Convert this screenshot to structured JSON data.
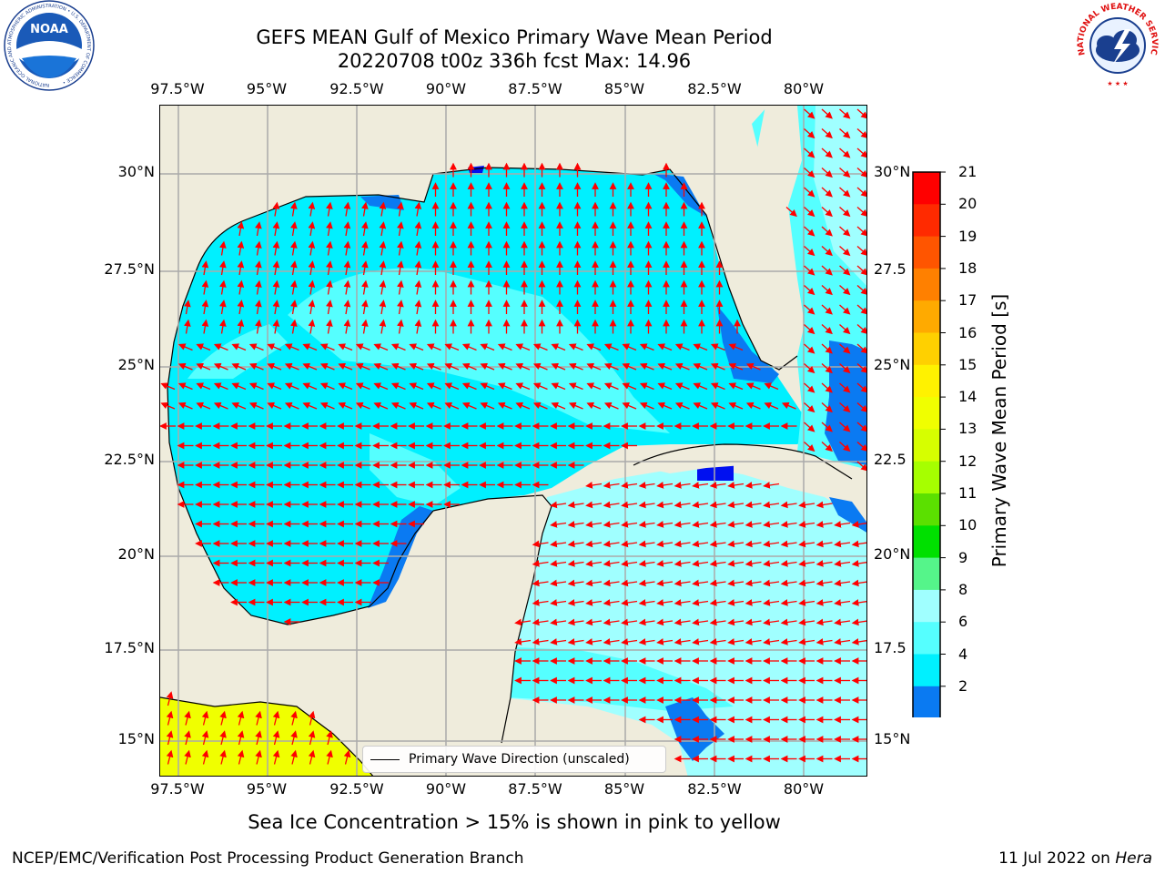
{
  "title": {
    "line1": "GEFS MEAN Gulf of Mexico Primary Wave Mean Period",
    "line2": "20220708 t00z 336h fcst   Max: 14.96"
  },
  "longitude_labels": [
    "97.5°W",
    "95°W",
    "92.5°W",
    "90°W",
    "87.5°W",
    "85°W",
    "82.5°W",
    "80°W"
  ],
  "latitude_labels": [
    "30°N",
    "27.5°N",
    "25°N",
    "22.5°N",
    "20°N",
    "17.5°N",
    "15°N"
  ],
  "latitude_labels_right": [
    "30°N",
    "27.5",
    "25°N",
    "22.5",
    "20°N",
    "17.5",
    "15°N"
  ],
  "legend": {
    "label": "Primary Wave Direction (unscaled)"
  },
  "colorbar": {
    "title": "Primary Wave Mean Period [s]",
    "ticks": [
      "21",
      "20",
      "19",
      "18",
      "17",
      "16",
      "15",
      "14",
      "13",
      "12",
      "11",
      "10",
      "9",
      "8",
      "6",
      "4",
      "2"
    ],
    "colors": [
      "#ff0000",
      "#ff2a00",
      "#ff5500",
      "#ff8000",
      "#ffaa00",
      "#ffd000",
      "#fff200",
      "#f0ff00",
      "#d6ff00",
      "#a6ff00",
      "#5be000",
      "#00e000",
      "#55f58a",
      "#a0ffff",
      "#55ffff",
      "#00f0ff",
      "#0a7af2",
      "#0010f0"
    ]
  },
  "map_colors": {
    "land": "#efecdc",
    "sea_cyan": "#00f0ff",
    "sea_light": "#55ffff",
    "sea_pale": "#a0ffff",
    "sea_blue": "#0a7af2",
    "sea_dark": "#0010f0",
    "yellow": "#f0ff00",
    "arrow": "#ff0000",
    "grid": "#aaaaaa"
  },
  "ice_note": "Sea Ice Concentration > 15% is shown in pink to yellow",
  "footer": {
    "left": "NCEP/EMC/Verification Post Processing Product Generation Branch",
    "right_prefix": "11 Jul 2022 on ",
    "right_italic": "Hera"
  },
  "logos": {
    "noaa": "NOAA",
    "noaa_ring": "NATIONAL OCEANIC AND ATMOSPHERIC ADMINISTRATION • U.S. DEPARTMENT OF COMMERCE •",
    "nws": "NATIONAL WEATHER SERVICE"
  }
}
